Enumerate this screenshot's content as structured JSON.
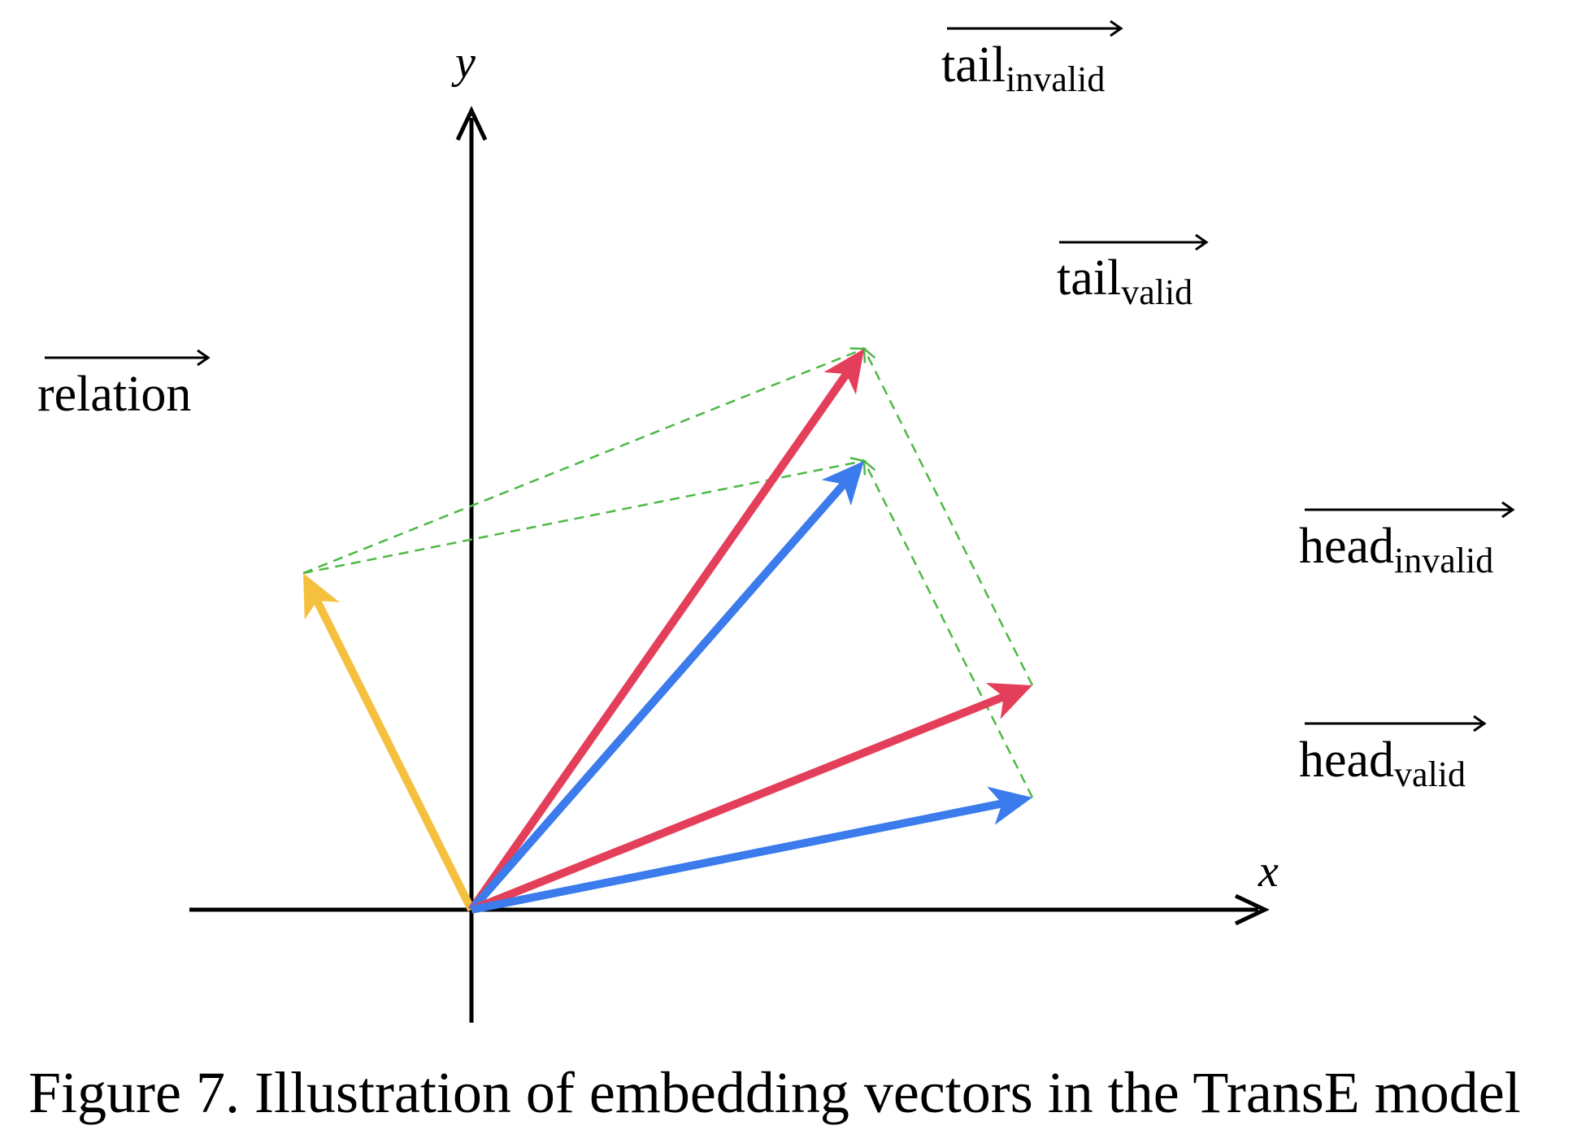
{
  "figure": {
    "caption": "Figure 7. Illustration of embedding vectors in the TransE model"
  },
  "axes": {
    "x_label": "x",
    "y_label": "y"
  },
  "colors": {
    "axis": "#000000",
    "relation": "#F4C03D",
    "valid": "#3B7BEB",
    "invalid": "#E43F5A",
    "translation_guide": "#4CB944"
  },
  "vectors": [
    {
      "id": "relation",
      "base": "relation",
      "sub": "",
      "color_key": "relation",
      "tip": [
        -3.0,
        6.0
      ]
    },
    {
      "id": "tail_invalid",
      "base": "tail",
      "sub": "invalid",
      "color_key": "invalid",
      "tip": [
        7.0,
        10.0
      ]
    },
    {
      "id": "tail_valid",
      "base": "tail",
      "sub": "valid",
      "color_key": "valid",
      "tip": [
        7.0,
        8.0
      ]
    },
    {
      "id": "head_invalid",
      "base": "head",
      "sub": "invalid",
      "color_key": "invalid",
      "tip": [
        10.0,
        4.0
      ]
    },
    {
      "id": "head_valid",
      "base": "head",
      "sub": "valid",
      "color_key": "valid",
      "tip": [
        10.0,
        2.0
      ]
    }
  ],
  "translation_guides": [
    {
      "from": "head_invalid",
      "to": "tail_invalid"
    },
    {
      "from": "head_valid",
      "to": "tail_valid"
    },
    {
      "from": "relation",
      "to": "tail_invalid"
    },
    {
      "from": "relation",
      "to": "tail_valid"
    }
  ]
}
